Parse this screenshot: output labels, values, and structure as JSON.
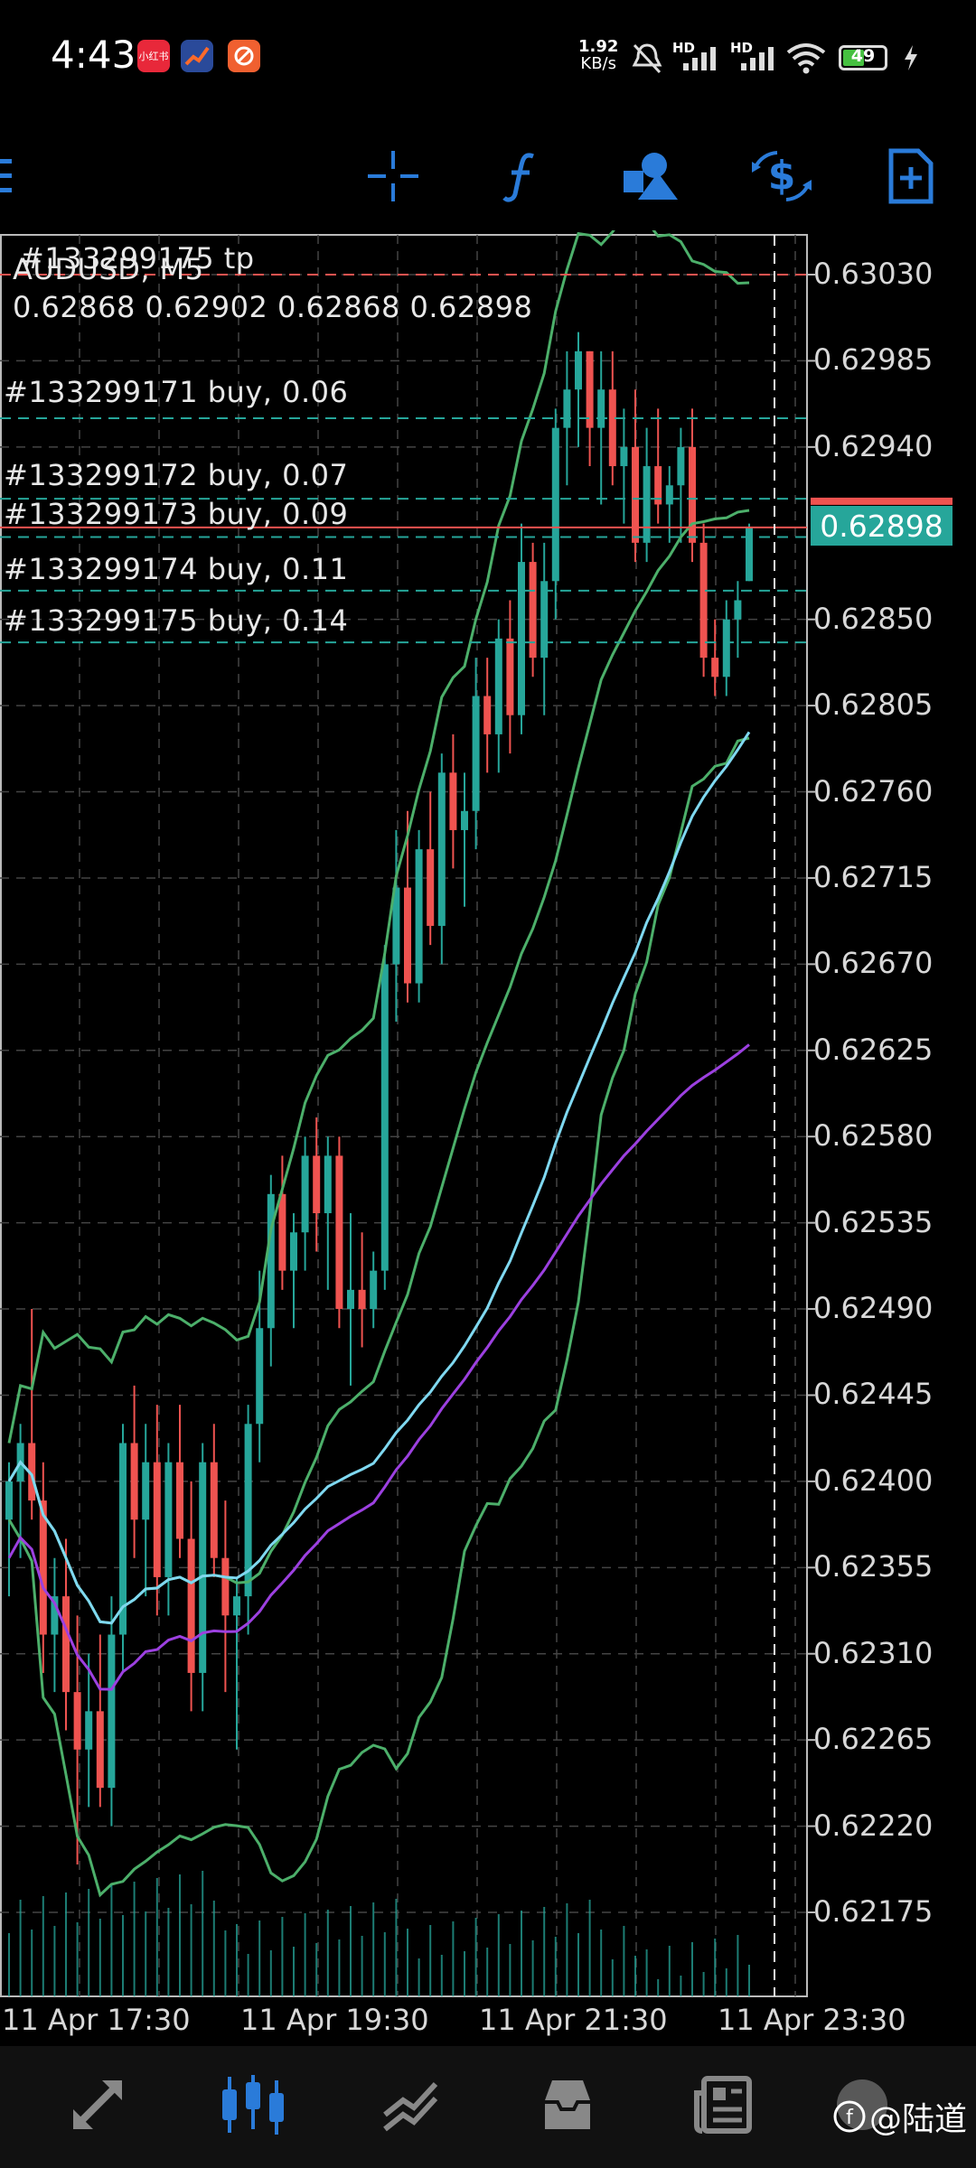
{
  "status_bar": {
    "time": "4:43",
    "net_speed_value": "1.92",
    "net_speed_unit": "KB/s",
    "battery": "49",
    "app_icons": [
      {
        "name": "xiaohongshu-app-icon",
        "label": "小红书",
        "color": "#e8283a"
      },
      {
        "name": "chart-app-icon",
        "label": "",
        "color": "#2a4a9a"
      },
      {
        "name": "orange-app-icon",
        "label": "",
        "color": "#f06030"
      }
    ],
    "signal_label_1": "HD",
    "signal_label_2": "HD"
  },
  "toolbar": {
    "icons": [
      "menu-icon",
      "crosshair-icon",
      "function-icon",
      "objects-icon",
      "trade-icon",
      "new-order-icon"
    ],
    "accent": "#2a7bd9"
  },
  "chart": {
    "symbol_line": "AUDUSD, M5",
    "ohlc_line": "0.62868 0.62902 0.62868 0.62898",
    "tp_label": "#133299175 tp",
    "current_price": "0.62898",
    "price_labels": [
      "0.63030",
      "0.62985",
      "0.62940",
      "0.62850",
      "0.62805",
      "0.62760",
      "0.62715",
      "0.62670",
      "0.62625",
      "0.62580",
      "0.62535",
      "0.62490",
      "0.62445",
      "0.62400",
      "0.62355",
      "0.62310",
      "0.62265",
      "0.62220",
      "0.62175"
    ],
    "time_labels": [
      "11 Apr 17:30",
      "11 Apr 19:30",
      "11 Apr 21:30",
      "11 Apr 23:30"
    ],
    "orders": [
      {
        "label": "#133299171 buy, 0.06",
        "price": 0.62955
      },
      {
        "label": "#133299172 buy, 0.07",
        "price": 0.62913
      },
      {
        "label": "#133299173 buy, 0.09",
        "price": 0.62893
      },
      {
        "label": "#133299174 buy, 0.11",
        "price": 0.62865
      },
      {
        "label": "#133299175 buy, 0.14",
        "price": 0.62838
      }
    ],
    "tp_price": 0.6303,
    "bid_price": 0.62898,
    "colors": {
      "bull": "#26a69a",
      "bear": "#ef5350",
      "band": "#4caf6a",
      "ma_fast": "#7fd8f0",
      "ma_slow": "#9c40e0",
      "tp_line": "#ef5350",
      "order_line": "#26a69a"
    }
  },
  "chart_data": {
    "type": "candlestick",
    "symbol": "AUDUSD",
    "timeframe": "M5",
    "ylim": [
      0.6214,
      0.6305
    ],
    "x_ticks": [
      "11 Apr 17:30",
      "11 Apr 19:30",
      "11 Apr 21:30",
      "11 Apr 23:30"
    ],
    "candles": [
      [
        0.6238,
        0.6241,
        0.6234,
        0.624
      ],
      [
        0.624,
        0.6243,
        0.6236,
        0.6242
      ],
      [
        0.6242,
        0.6249,
        0.6238,
        0.6239
      ],
      [
        0.6239,
        0.6241,
        0.623,
        0.6232
      ],
      [
        0.6232,
        0.6236,
        0.6229,
        0.6234
      ],
      [
        0.6234,
        0.6237,
        0.6227,
        0.6229
      ],
      [
        0.6229,
        0.6233,
        0.622,
        0.6226
      ],
      [
        0.6226,
        0.6231,
        0.6223,
        0.6228
      ],
      [
        0.6228,
        0.6232,
        0.6223,
        0.6224
      ],
      [
        0.6224,
        0.6234,
        0.6222,
        0.6232
      ],
      [
        0.6232,
        0.6243,
        0.623,
        0.6242
      ],
      [
        0.6242,
        0.6245,
        0.6236,
        0.6238
      ],
      [
        0.6238,
        0.6243,
        0.6234,
        0.6241
      ],
      [
        0.6241,
        0.6244,
        0.6233,
        0.6235
      ],
      [
        0.6235,
        0.6242,
        0.6233,
        0.6241
      ],
      [
        0.6241,
        0.6244,
        0.6236,
        0.6237
      ],
      [
        0.6237,
        0.624,
        0.6228,
        0.623
      ],
      [
        0.623,
        0.6242,
        0.6228,
        0.6241
      ],
      [
        0.6241,
        0.6243,
        0.6235,
        0.6236
      ],
      [
        0.6236,
        0.6239,
        0.6229,
        0.6233
      ],
      [
        0.6233,
        0.6235,
        0.6226,
        0.6234
      ],
      [
        0.6234,
        0.6244,
        0.6232,
        0.6243
      ],
      [
        0.6243,
        0.6251,
        0.6241,
        0.6248
      ],
      [
        0.6248,
        0.6256,
        0.6246,
        0.6255
      ],
      [
        0.6255,
        0.6257,
        0.625,
        0.6251
      ],
      [
        0.6251,
        0.6254,
        0.6248,
        0.6253
      ],
      [
        0.6253,
        0.6258,
        0.6251,
        0.6257
      ],
      [
        0.6257,
        0.6259,
        0.6252,
        0.6254
      ],
      [
        0.6254,
        0.6258,
        0.625,
        0.6257
      ],
      [
        0.6257,
        0.6258,
        0.6248,
        0.6249
      ],
      [
        0.6249,
        0.6254,
        0.6245,
        0.625
      ],
      [
        0.625,
        0.6253,
        0.6247,
        0.6249
      ],
      [
        0.6249,
        0.6252,
        0.6248,
        0.6251
      ],
      [
        0.6251,
        0.6268,
        0.625,
        0.6267
      ],
      [
        0.6267,
        0.6274,
        0.6264,
        0.6271
      ],
      [
        0.6271,
        0.6275,
        0.6265,
        0.6266
      ],
      [
        0.6266,
        0.6274,
        0.6265,
        0.6273
      ],
      [
        0.6273,
        0.6276,
        0.6268,
        0.6269
      ],
      [
        0.6269,
        0.6278,
        0.6267,
        0.6277
      ],
      [
        0.6277,
        0.6279,
        0.6272,
        0.6274
      ],
      [
        0.6274,
        0.6277,
        0.627,
        0.6275
      ],
      [
        0.6275,
        0.6283,
        0.6273,
        0.6281
      ],
      [
        0.6281,
        0.6283,
        0.6277,
        0.6279
      ],
      [
        0.6279,
        0.6285,
        0.6277,
        0.6284
      ],
      [
        0.6284,
        0.6286,
        0.6278,
        0.628
      ],
      [
        0.628,
        0.629,
        0.6279,
        0.6288
      ],
      [
        0.6288,
        0.6289,
        0.6282,
        0.6283
      ],
      [
        0.6283,
        0.6289,
        0.628,
        0.6287
      ],
      [
        0.6287,
        0.6296,
        0.6285,
        0.6295
      ],
      [
        0.6295,
        0.6299,
        0.6292,
        0.6297
      ],
      [
        0.6297,
        0.63,
        0.6294,
        0.6299
      ],
      [
        0.6299,
        0.6299,
        0.6293,
        0.6295
      ],
      [
        0.6295,
        0.6299,
        0.6291,
        0.6297
      ],
      [
        0.6297,
        0.6299,
        0.6292,
        0.6293
      ],
      [
        0.6293,
        0.6296,
        0.629,
        0.6294
      ],
      [
        0.6294,
        0.6297,
        0.6288,
        0.6289
      ],
      [
        0.6289,
        0.6295,
        0.6288,
        0.6293
      ],
      [
        0.6293,
        0.6296,
        0.629,
        0.6291
      ],
      [
        0.6291,
        0.6293,
        0.6289,
        0.6292
      ],
      [
        0.6292,
        0.6295,
        0.6289,
        0.6294
      ],
      [
        0.6294,
        0.6296,
        0.6288,
        0.6289
      ],
      [
        0.6289,
        0.629,
        0.6282,
        0.6283
      ],
      [
        0.6283,
        0.6285,
        0.6281,
        0.6282
      ],
      [
        0.6282,
        0.6286,
        0.6281,
        0.6285
      ],
      [
        0.6285,
        0.6287,
        0.6283,
        0.6286
      ],
      [
        0.6287,
        0.629,
        0.6287,
        0.62898
      ]
    ]
  },
  "bottom_nav": {
    "icons": [
      "quotes-icon",
      "chart-icon",
      "trade-icon",
      "history-icon",
      "messages-icon",
      "settings-icon"
    ],
    "active_index": 1,
    "watermark": "@陆道"
  }
}
